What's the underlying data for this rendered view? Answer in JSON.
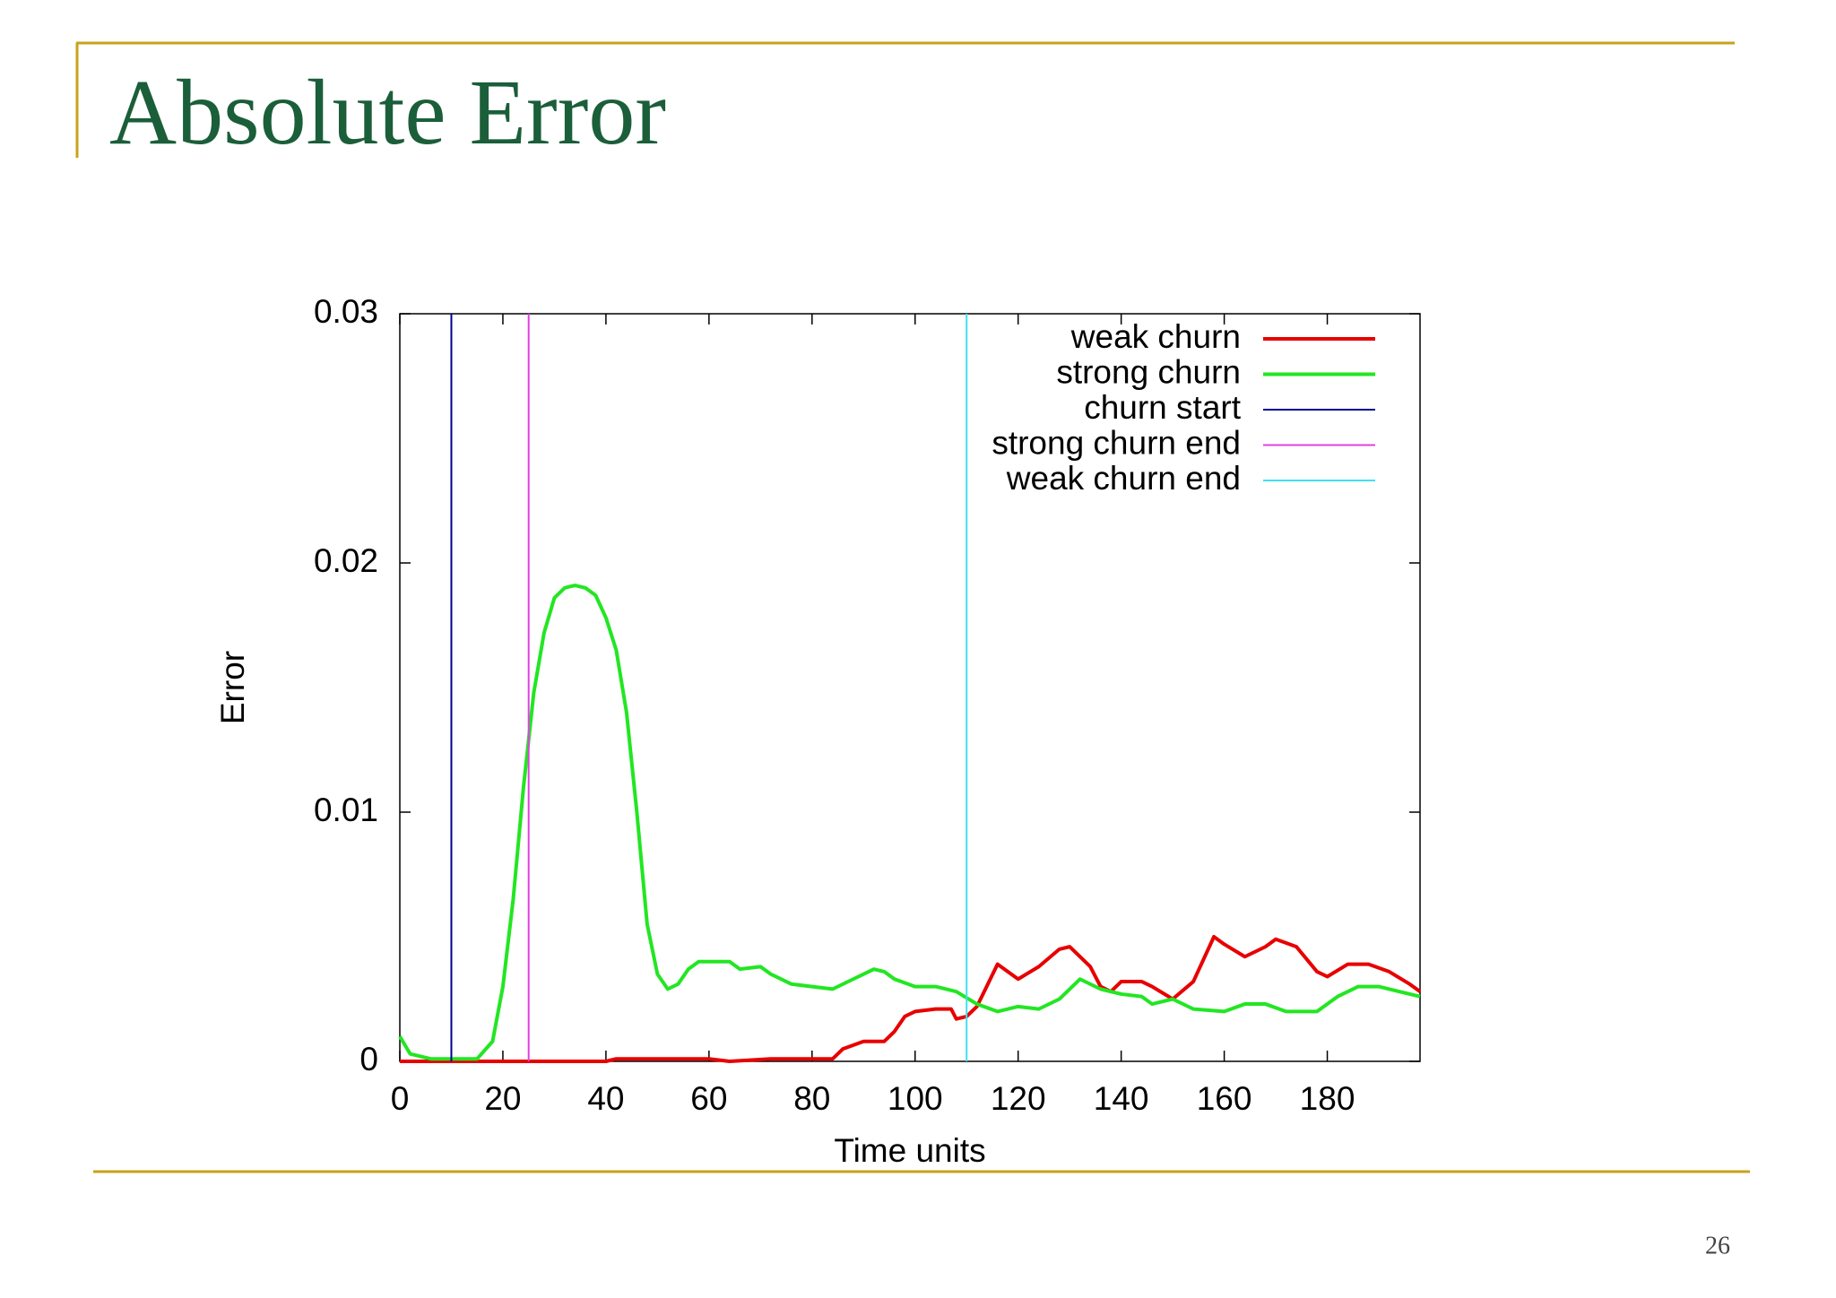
{
  "slide": {
    "title": "Absolute Error",
    "page_number": "26"
  },
  "chart_data": {
    "type": "line",
    "x_label": "Time units",
    "y_label": "Error",
    "xlim": [
      0,
      198
    ],
    "xticks": [
      0,
      20,
      40,
      60,
      80,
      100,
      120,
      140,
      160,
      180
    ],
    "ylim": [
      0,
      0.03
    ],
    "yticks": [
      0,
      0.01,
      0.02,
      0.03
    ],
    "legend": "top-right",
    "series": [
      {
        "name": "weak churn",
        "color": "#e80000",
        "width": 4,
        "x": [
          0,
          20,
          40,
          42,
          60,
          64,
          72,
          84,
          86,
          90,
          94,
          96,
          98,
          100,
          104,
          107,
          108,
          110,
          112,
          116,
          120,
          124,
          128,
          130,
          134,
          136,
          138,
          140,
          144,
          146,
          150,
          154,
          158,
          160,
          164,
          168,
          170,
          174,
          178,
          180,
          184,
          188,
          192,
          196,
          198
        ],
        "values": [
          0,
          0,
          0,
          0.0001,
          0.0001,
          0,
          0.0001,
          0.0001,
          0.0005,
          0.0008,
          0.0008,
          0.0012,
          0.0018,
          0.002,
          0.0021,
          0.0021,
          0.0017,
          0.0018,
          0.0022,
          0.0039,
          0.0033,
          0.0038,
          0.0045,
          0.0046,
          0.0038,
          0.003,
          0.0028,
          0.0032,
          0.0032,
          0.003,
          0.0025,
          0.0032,
          0.005,
          0.0047,
          0.0042,
          0.0046,
          0.0049,
          0.0046,
          0.0036,
          0.0034,
          0.0039,
          0.0039,
          0.0036,
          0.0031,
          0.0028
        ]
      },
      {
        "name": "strong churn",
        "color": "#22e622",
        "width": 4,
        "x": [
          0,
          2,
          4,
          6,
          10,
          15,
          18,
          20,
          22,
          24,
          26,
          28,
          30,
          32,
          34,
          36,
          38,
          40,
          42,
          44,
          46,
          48,
          50,
          52,
          54,
          56,
          58,
          60,
          64,
          66,
          70,
          72,
          76,
          80,
          84,
          88,
          92,
          94,
          96,
          100,
          104,
          108,
          112,
          116,
          120,
          124,
          128,
          132,
          136,
          140,
          144,
          146,
          150,
          154,
          160,
          164,
          168,
          172,
          178,
          182,
          186,
          190,
          194,
          198
        ],
        "values": [
          0.001,
          0.0003,
          0.0002,
          0.0001,
          0.0001,
          0.0001,
          0.0008,
          0.003,
          0.0065,
          0.011,
          0.0148,
          0.0172,
          0.0186,
          0.019,
          0.0191,
          0.019,
          0.0187,
          0.0178,
          0.0165,
          0.014,
          0.01,
          0.0055,
          0.0035,
          0.0029,
          0.0031,
          0.0037,
          0.004,
          0.004,
          0.004,
          0.0037,
          0.0038,
          0.0035,
          0.0031,
          0.003,
          0.0029,
          0.0033,
          0.0037,
          0.0036,
          0.0033,
          0.003,
          0.003,
          0.0028,
          0.0023,
          0.002,
          0.0022,
          0.0021,
          0.0025,
          0.0033,
          0.0029,
          0.0027,
          0.0026,
          0.0023,
          0.0025,
          0.0021,
          0.002,
          0.0023,
          0.0023,
          0.002,
          0.002,
          0.0026,
          0.003,
          0.003,
          0.0028,
          0.0026
        ]
      },
      {
        "name": "churn start",
        "color": "#000090",
        "width": 2,
        "x": [
          10,
          10
        ],
        "values": [
          0,
          0.03
        ]
      },
      {
        "name": "strong churn end",
        "color": "#e040e0",
        "width": 2,
        "x": [
          25,
          25
        ],
        "values": [
          0,
          0.03
        ]
      },
      {
        "name": "weak churn end",
        "color": "#40e0f0",
        "width": 2,
        "x": [
          110,
          110
        ],
        "values": [
          0,
          0.03
        ]
      }
    ]
  }
}
